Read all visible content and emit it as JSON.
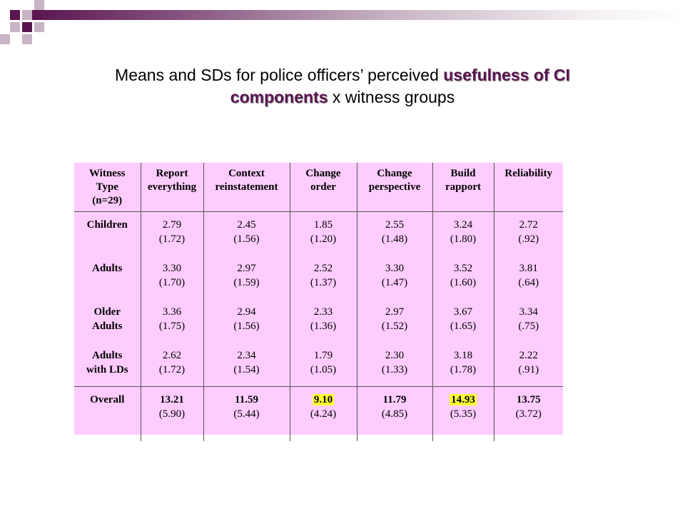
{
  "slide": {
    "title_part1": "Means and SDs for police officers’ perceived ",
    "title_highlight1": "usefulness of CI",
    "title_highlight2": "components",
    "title_part2": " x witness groups",
    "colors": {
      "accent": "#5a1550",
      "table_bg": "#ffccff",
      "highlight": "#ffff33"
    }
  },
  "table": {
    "headers": [
      [
        "Witness",
        "Type",
        "(n=29)"
      ],
      [
        "Report",
        "everything"
      ],
      [
        "Context",
        "reinstatement"
      ],
      [
        "Change",
        "order"
      ],
      [
        "Change",
        "perspective"
      ],
      [
        "Build",
        "rapport"
      ],
      [
        "Reliability"
      ]
    ],
    "rows": [
      {
        "label": [
          "Children"
        ],
        "cells": [
          [
            "2.79",
            "(1.72)"
          ],
          [
            "2.45",
            "(1.56)"
          ],
          [
            "1.85",
            "(1.20)"
          ],
          [
            "2.55",
            "(1.48)"
          ],
          [
            "3.24",
            "(1.80)"
          ],
          [
            "2.72",
            "(.92)"
          ]
        ]
      },
      {
        "label": [
          "Adults"
        ],
        "cells": [
          [
            "3.30",
            "(1.70)"
          ],
          [
            "2.97",
            "(1.59)"
          ],
          [
            "2.52",
            "(1.37)"
          ],
          [
            "3.30",
            "(1.47)"
          ],
          [
            "3.52",
            "(1.60)"
          ],
          [
            "3.81",
            "(.64)"
          ]
        ]
      },
      {
        "label": [
          "Older",
          "Adults"
        ],
        "cells": [
          [
            "3.36",
            "(1.75)"
          ],
          [
            "2.94",
            "(1.56)"
          ],
          [
            "2.33",
            "(1.36)"
          ],
          [
            "2.97",
            "(1.52)"
          ],
          [
            "3.67",
            "(1.65)"
          ],
          [
            "3.34",
            "(.75)"
          ]
        ]
      },
      {
        "label": [
          "Adults",
          "with LDs"
        ],
        "cells": [
          [
            "2.62",
            "(1.72)"
          ],
          [
            "2.34",
            "(1.54)"
          ],
          [
            "1.79",
            "(1.05)"
          ],
          [
            "2.30",
            "(1.33)"
          ],
          [
            "3.18",
            "(1.78)"
          ],
          [
            "2.22",
            "(.91)"
          ]
        ]
      }
    ],
    "overall": {
      "label": "Overall",
      "cells": [
        [
          "13.21",
          "(5.90)"
        ],
        [
          "11.59",
          "(5.44)"
        ],
        [
          "9.10",
          "(4.24)"
        ],
        [
          "11.79",
          "(4.85)"
        ],
        [
          "14.93",
          "(5.35)"
        ],
        [
          "13.75",
          "(3.72)"
        ]
      ],
      "highlighted": [
        2,
        4
      ]
    }
  }
}
